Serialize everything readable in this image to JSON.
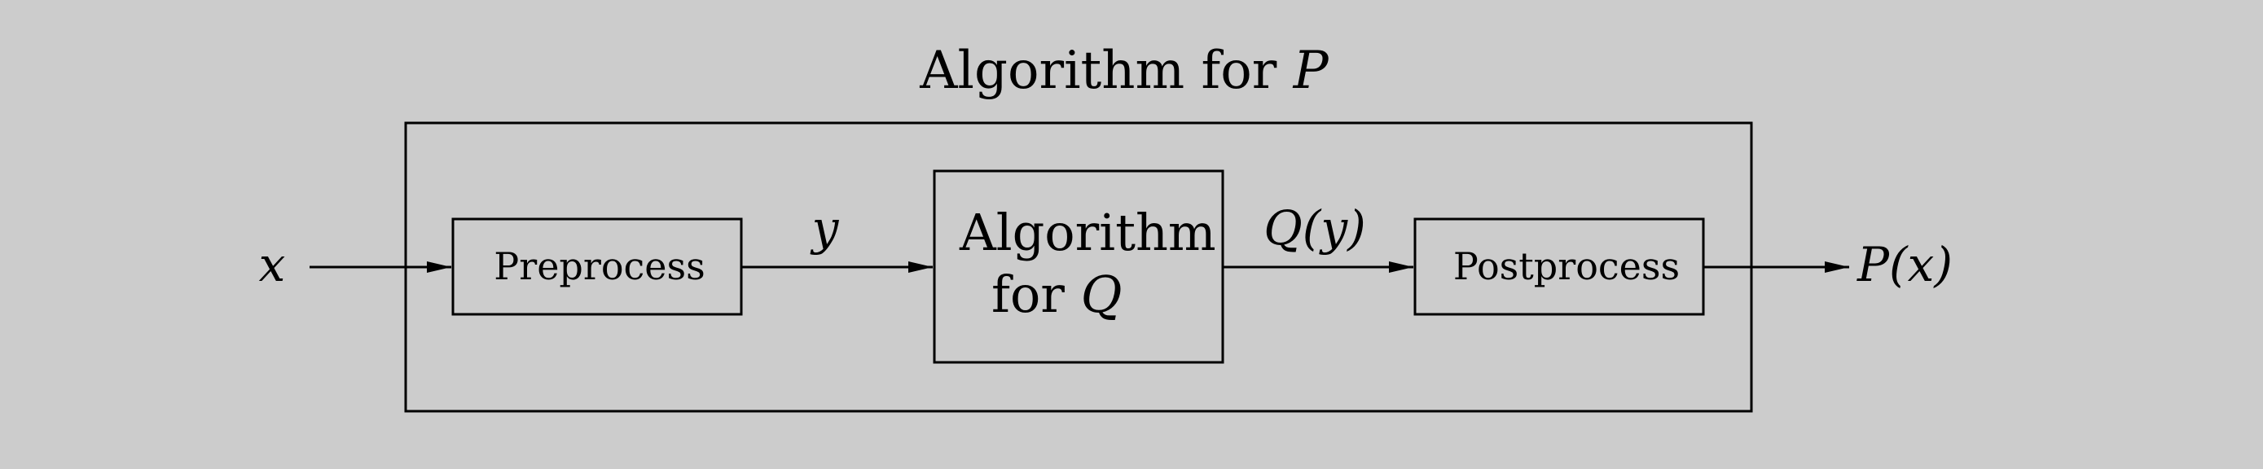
{
  "title": {
    "prefix": "Algorithm for ",
    "var": "P"
  },
  "input_label": "x",
  "blocks": {
    "preprocess": "Preprocess",
    "algorithm_q_line1": "Algorithm",
    "algorithm_q_line2_prefix": "for ",
    "algorithm_q_var": "Q",
    "postprocess": "Postprocess"
  },
  "edge_labels": {
    "y": "y",
    "q_of_y": "Q(y)"
  },
  "output_label": "P(x)",
  "colors": {
    "background": "#cccccc",
    "stroke": "#000000"
  }
}
